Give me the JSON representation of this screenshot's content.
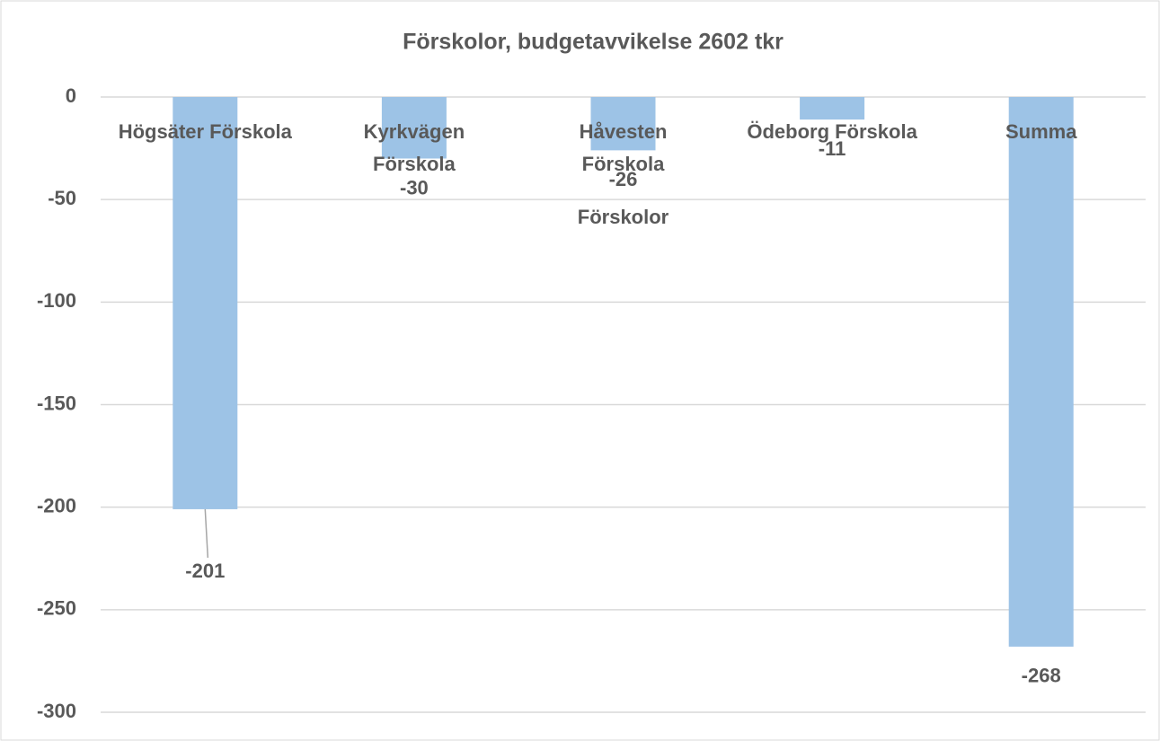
{
  "chart_data": {
    "type": "bar",
    "title": "Förskolor, budgetavvikelse 2602 tkr",
    "x_label": "Förskolor",
    "categories": [
      "Högsäter Förskola",
      "Kyrkvägen Förskola",
      "Håvesten Förskola",
      "Ödeborg Förskola",
      "Summa"
    ],
    "values": [
      -201,
      -30,
      -26,
      -11,
      -268
    ],
    "color": "#9dc3e6",
    "ylim": [
      -300,
      0
    ],
    "yticks": [
      0,
      -50,
      -100,
      -150,
      -200,
      -250,
      -300
    ],
    "grid": true
  }
}
